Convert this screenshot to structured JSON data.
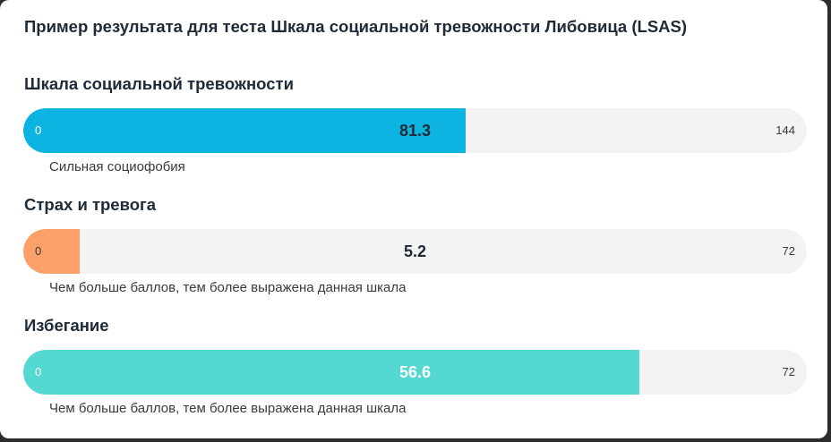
{
  "title": "Пример результата для теста Шкала социальной тревожности Либовица (LSAS)",
  "colors": {
    "scale1_fill": "#0db4e1",
    "scale2_fill": "#fba068",
    "scale3_fill": "#53d9d2",
    "track": "#f3f3f3"
  },
  "scales": [
    {
      "title": "Шкала социальной тревожности",
      "min": "0",
      "max": "144",
      "value": "81.3",
      "fraction": 0.5646,
      "description": "Сильная социофобия"
    },
    {
      "title": "Страх и тревога",
      "min": "0",
      "max": "72",
      "value": "5.2",
      "fraction": 0.0722,
      "description": "Чем больше баллов, тем более выражена данная шкала"
    },
    {
      "title": "Избегание",
      "min": "0",
      "max": "72",
      "value": "56.6",
      "fraction": 0.7861,
      "description": "Чем больше баллов, тем более выражена данная шкала"
    }
  ]
}
